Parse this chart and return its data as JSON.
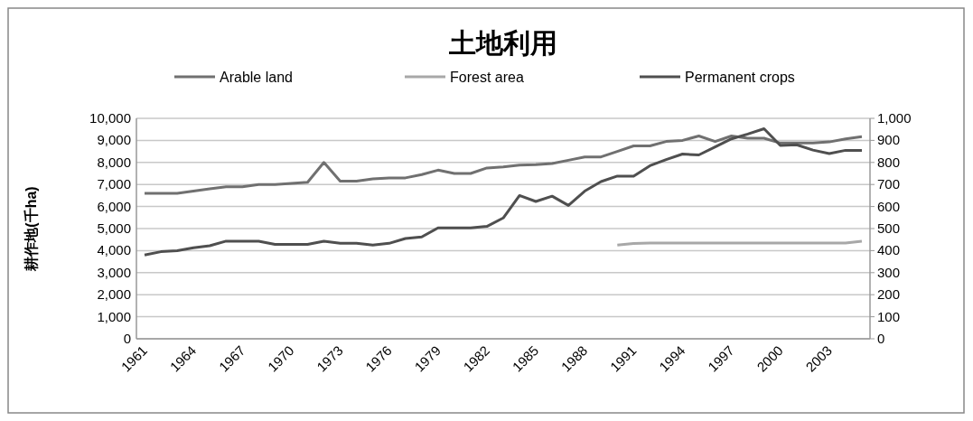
{
  "chart_data": {
    "type": "line",
    "title": "土地利用",
    "ylabel": "耕作地(千ha)",
    "categories": [
      "1961",
      null,
      null,
      "1964",
      null,
      null,
      "1967",
      null,
      null,
      "1970",
      null,
      null,
      "1973",
      null,
      null,
      "1976",
      null,
      null,
      "1979",
      null,
      null,
      "1982",
      null,
      null,
      "1985",
      null,
      null,
      "1988",
      null,
      null,
      "1991",
      null,
      null,
      "1994",
      null,
      null,
      "1997",
      null,
      null,
      "2000",
      null,
      null,
      "2003",
      null,
      null
    ],
    "series": [
      {
        "name": "Arable land",
        "color": "#707070",
        "values": [
          6600,
          6600,
          6600,
          6700,
          6800,
          6900,
          6900,
          7000,
          7000,
          7050,
          7100,
          8000,
          7150,
          7150,
          7250,
          7300,
          7300,
          7450,
          7650,
          7500,
          7500,
          7750,
          7800,
          7880,
          7900,
          7950,
          8100,
          8250,
          8250,
          8500,
          8750,
          8750,
          8950,
          9000,
          9200,
          8950,
          9200,
          9100,
          9100,
          8880,
          8880,
          8880,
          8930,
          9070,
          9170
        ]
      },
      {
        "name": "Forest area",
        "color": "#a8a8a8",
        "values": [
          null,
          null,
          null,
          null,
          null,
          null,
          null,
          null,
          null,
          null,
          null,
          null,
          null,
          null,
          null,
          null,
          null,
          null,
          null,
          null,
          null,
          null,
          null,
          null,
          null,
          null,
          null,
          null,
          null,
          4250,
          4320,
          4340,
          4340,
          4340,
          4340,
          4340,
          4340,
          4340,
          4340,
          4340,
          4340,
          4340,
          4340,
          4340,
          4430
        ]
      },
      {
        "name": "Permanent crops",
        "color": "#4f4f4f",
        "axis": "y2",
        "values": [
          380,
          395,
          400,
          413,
          422,
          443,
          443,
          443,
          428,
          428,
          428,
          443,
          433,
          433,
          425,
          433,
          455,
          462,
          503,
          503,
          503,
          510,
          548,
          650,
          623,
          647,
          605,
          670,
          713,
          738,
          738,
          785,
          813,
          838,
          834,
          870,
          907,
          929,
          953,
          877,
          880,
          856,
          840,
          855,
          855
        ]
      }
    ],
    "ylim": [
      0,
      10000
    ],
    "yticks": [
      {
        "value": 0,
        "label": "0"
      },
      {
        "value": 1000,
        "label": "1,000"
      },
      {
        "value": 2000,
        "label": "2,000"
      },
      {
        "value": 3000,
        "label": "3,000"
      },
      {
        "value": 4000,
        "label": "4,000"
      },
      {
        "value": 5000,
        "label": "5,000"
      },
      {
        "value": 6000,
        "label": "6,000"
      },
      {
        "value": 7000,
        "label": "7,000"
      },
      {
        "value": 8000,
        "label": "8,000"
      },
      {
        "value": 9000,
        "label": "9,000"
      },
      {
        "value": 10000,
        "label": "10,000"
      }
    ],
    "y2lim": [
      0,
      1000
    ],
    "y2ticks": [
      0,
      100,
      200,
      300,
      400,
      500,
      600,
      700,
      800,
      900,
      {
        "value": 1000,
        "label": "1,000"
      }
    ],
    "grid": "y",
    "legend": "top",
    "marker": "none",
    "line_style": "solid"
  }
}
